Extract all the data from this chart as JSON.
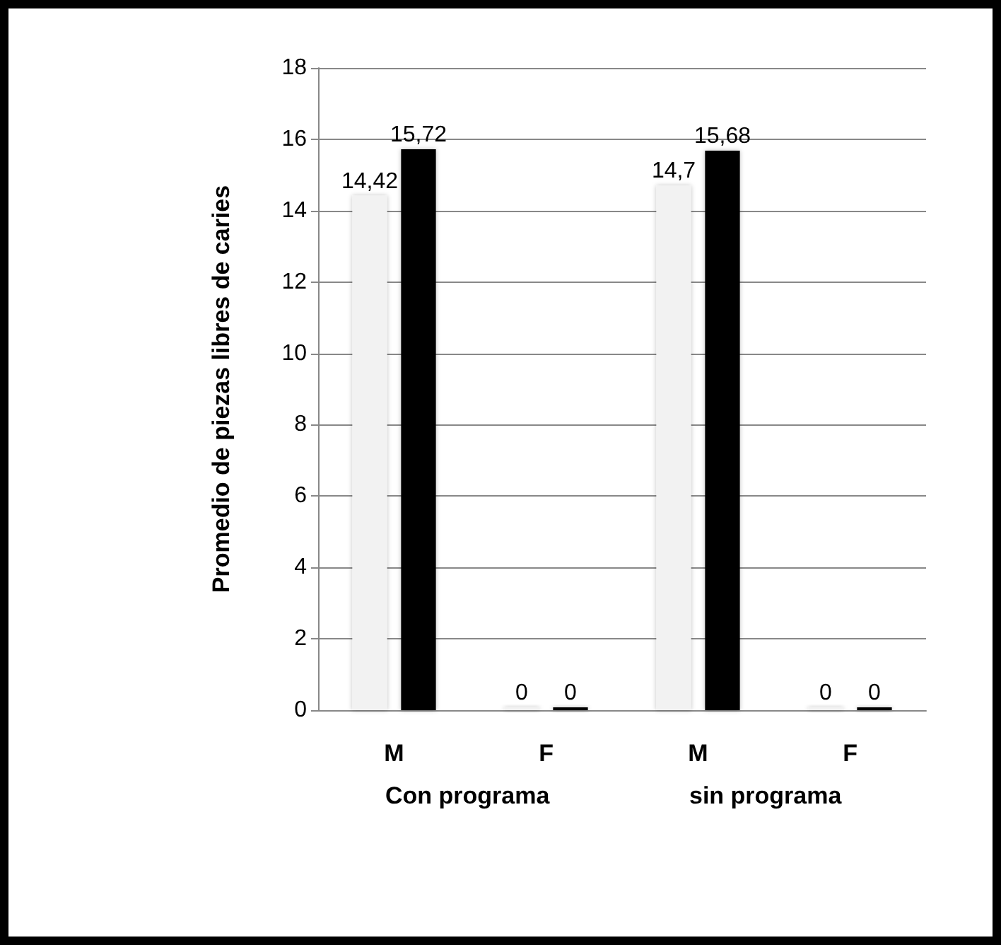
{
  "chart_data": {
    "type": "bar",
    "ylabel": "Promedio de piezas libres de caries",
    "categories": [
      "M",
      "F",
      "M",
      "F"
    ],
    "series": [
      {
        "color": "#f2f2f2",
        "values": [
          14.42,
          0,
          14.7,
          0
        ],
        "value_labels": [
          "14,42",
          "0",
          "14,7",
          "0"
        ]
      },
      {
        "color": "#000000",
        "values": [
          15.72,
          0,
          15.68,
          0
        ],
        "value_labels": [
          "15,72",
          "0",
          "15,68",
          "0"
        ]
      }
    ],
    "annotations": [
      "Con programa",
      "sin programa"
    ],
    "ylim": [
      0,
      18
    ],
    "yticks": [
      0,
      2,
      4,
      6,
      8,
      10,
      12,
      14,
      16,
      18
    ],
    "grid": "y"
  }
}
